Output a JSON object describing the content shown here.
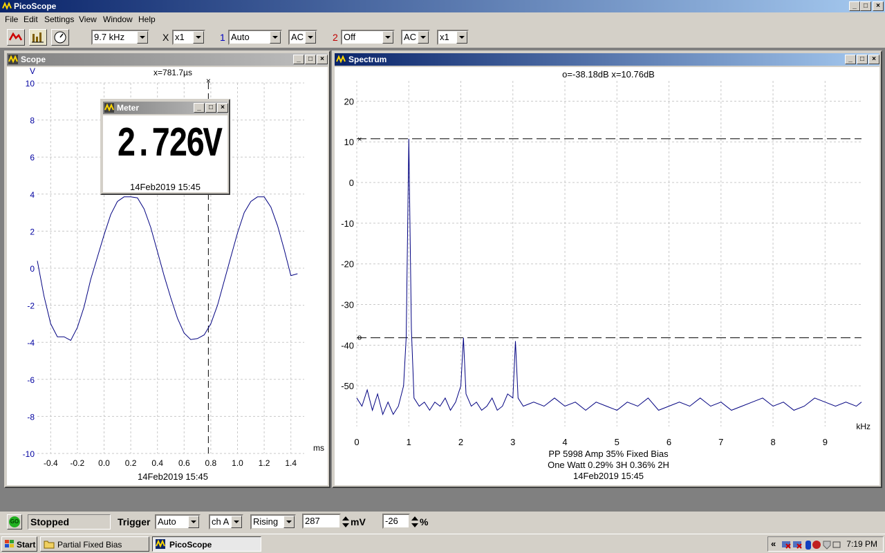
{
  "app": {
    "title": "PicoScope"
  },
  "menu": [
    "File",
    "Edit",
    "Settings",
    "View",
    "Window",
    "Help"
  ],
  "toolbar": {
    "timebase": "9.7 kHz",
    "x_label": "X",
    "x_mult": "x1",
    "ch1_num": "1",
    "ch1_range": "Auto",
    "ch1_coupling": "AC",
    "ch2_num": "2",
    "ch2_range": "Off",
    "ch2_coupling": "AC",
    "ch2_mult": "x1"
  },
  "scope": {
    "title": "Scope",
    "y_unit": "V",
    "x_unit": "ms",
    "cursor_readout": "x=781.7µs",
    "cursor_x": 0.7817,
    "timestamp": "14Feb2019  15:45",
    "y_ticks": [
      "10",
      "8",
      "6",
      "4",
      "2",
      "0",
      "-2",
      "-4",
      "-6",
      "-8",
      "-10"
    ],
    "x_ticks": [
      "-0.4",
      "-0.2",
      "0.0",
      "0.2",
      "0.4",
      "0.6",
      "0.8",
      "1.0",
      "1.2",
      "1.4"
    ]
  },
  "meter": {
    "title": "Meter",
    "value": "2.726V",
    "timestamp": "14Feb2019  15:45"
  },
  "spectrum": {
    "title": "Spectrum",
    "readout": "o=-38.18dB  x=10.76dB",
    "cursor_o_db": -38.18,
    "cursor_x_db": 10.76,
    "y_ticks": [
      "20",
      "10",
      "0",
      "-10",
      "-20",
      "-30",
      "-40",
      "-50"
    ],
    "x_ticks": [
      "0",
      "1",
      "2",
      "3",
      "4",
      "5",
      "6",
      "7",
      "8",
      "9"
    ],
    "x_unit": "kHz",
    "caption1": "PP 5998 Amp 35% Fixed Bias",
    "caption2": "One Watt 0.29% 3H 0.36% 2H",
    "timestamp": "14Feb2019  15:45"
  },
  "status": {
    "go_label": "GO",
    "state": "Stopped",
    "trigger_label": "Trigger",
    "trigger_mode": "Auto",
    "trigger_channel": "ch A",
    "trigger_edge": "Rising",
    "trigger_level": "287",
    "level_unit": "mV",
    "pretrigger": "-26",
    "pretrigger_unit": "%"
  },
  "taskbar": {
    "start": "Start",
    "task1": "Partial Fixed Bias",
    "task2": "PicoScope",
    "clock": "7:19 PM",
    "tray_chevron": "«"
  },
  "colors": {
    "trace": "#000080",
    "title_active": "#0a246a",
    "title_inactive": "#808080",
    "cursor_dash": "#000000"
  },
  "chart_data": [
    {
      "type": "line",
      "title": "Scope",
      "xlabel": "ms",
      "ylabel": "V",
      "xlim": [
        -0.5,
        1.5
      ],
      "ylim": [
        -10,
        10
      ],
      "grid": true,
      "series": [
        {
          "x": [
            -0.5,
            -0.45,
            -0.4,
            -0.35,
            -0.3,
            -0.25,
            -0.2,
            -0.15,
            -0.1,
            -0.05,
            0.0,
            0.05,
            0.1,
            0.15,
            0.2,
            0.25,
            0.3,
            0.35,
            0.4,
            0.45,
            0.5,
            0.55,
            0.6,
            0.65,
            0.7,
            0.75,
            0.8,
            0.85,
            0.9,
            0.95,
            1.0,
            1.05,
            1.1,
            1.15,
            1.2,
            1.25,
            1.3,
            1.35,
            1.4,
            1.45
          ],
          "y": [
            0.4,
            -1.5,
            -3.0,
            -3.7,
            -3.7,
            -3.9,
            -3.2,
            -2.1,
            -0.6,
            0.6,
            1.8,
            2.9,
            3.6,
            3.85,
            3.85,
            3.8,
            3.2,
            2.2,
            0.9,
            -0.4,
            -1.6,
            -2.7,
            -3.5,
            -3.85,
            -3.8,
            -3.6,
            -3.0,
            -2.0,
            -0.7,
            0.6,
            1.9,
            3.0,
            3.6,
            3.85,
            3.85,
            3.3,
            2.3,
            1.0,
            -0.4,
            -0.3
          ]
        }
      ]
    },
    {
      "type": "line",
      "title": "Spectrum",
      "xlabel": "kHz",
      "ylabel": "",
      "xlim": [
        0,
        9.7
      ],
      "ylim": [
        -60,
        25
      ],
      "grid": true,
      "series": [
        {
          "x": [
            0.0,
            0.1,
            0.2,
            0.3,
            0.4,
            0.5,
            0.6,
            0.7,
            0.8,
            0.9,
            0.95,
            1.0,
            1.05,
            1.1,
            1.2,
            1.3,
            1.4,
            1.5,
            1.6,
            1.7,
            1.8,
            1.9,
            2.0,
            2.05,
            2.1,
            2.2,
            2.3,
            2.4,
            2.5,
            2.6,
            2.7,
            2.8,
            2.9,
            3.0,
            3.05,
            3.1,
            3.2,
            3.4,
            3.6,
            3.8,
            4.0,
            4.2,
            4.4,
            4.6,
            4.8,
            5.0,
            5.2,
            5.4,
            5.6,
            5.8,
            6.0,
            6.2,
            6.4,
            6.6,
            6.8,
            7.0,
            7.2,
            7.4,
            7.6,
            7.8,
            8.0,
            8.2,
            8.4,
            8.6,
            8.8,
            9.0,
            9.2,
            9.4,
            9.6,
            9.7
          ],
          "y": [
            -53,
            -55,
            -51,
            -56,
            -52,
            -57,
            -54,
            -57,
            -55,
            -50,
            -38,
            10.76,
            -36,
            -53,
            -55,
            -54,
            -56,
            -54,
            -55,
            -53,
            -56,
            -54,
            -50,
            -38.18,
            -52,
            -55,
            -54,
            -56,
            -55,
            -53,
            -56,
            -55,
            -52,
            -53,
            -39,
            -53,
            -55,
            -54,
            -55,
            -53,
            -55,
            -54,
            -56,
            -54,
            -55,
            -56,
            -54,
            -55,
            -53,
            -56,
            -55,
            -54,
            -55,
            -53,
            -55,
            -54,
            -56,
            -55,
            -54,
            -53,
            -55,
            -54,
            -56,
            -55,
            -53,
            -54,
            -55,
            -54,
            -55,
            -54
          ]
        }
      ]
    }
  ]
}
